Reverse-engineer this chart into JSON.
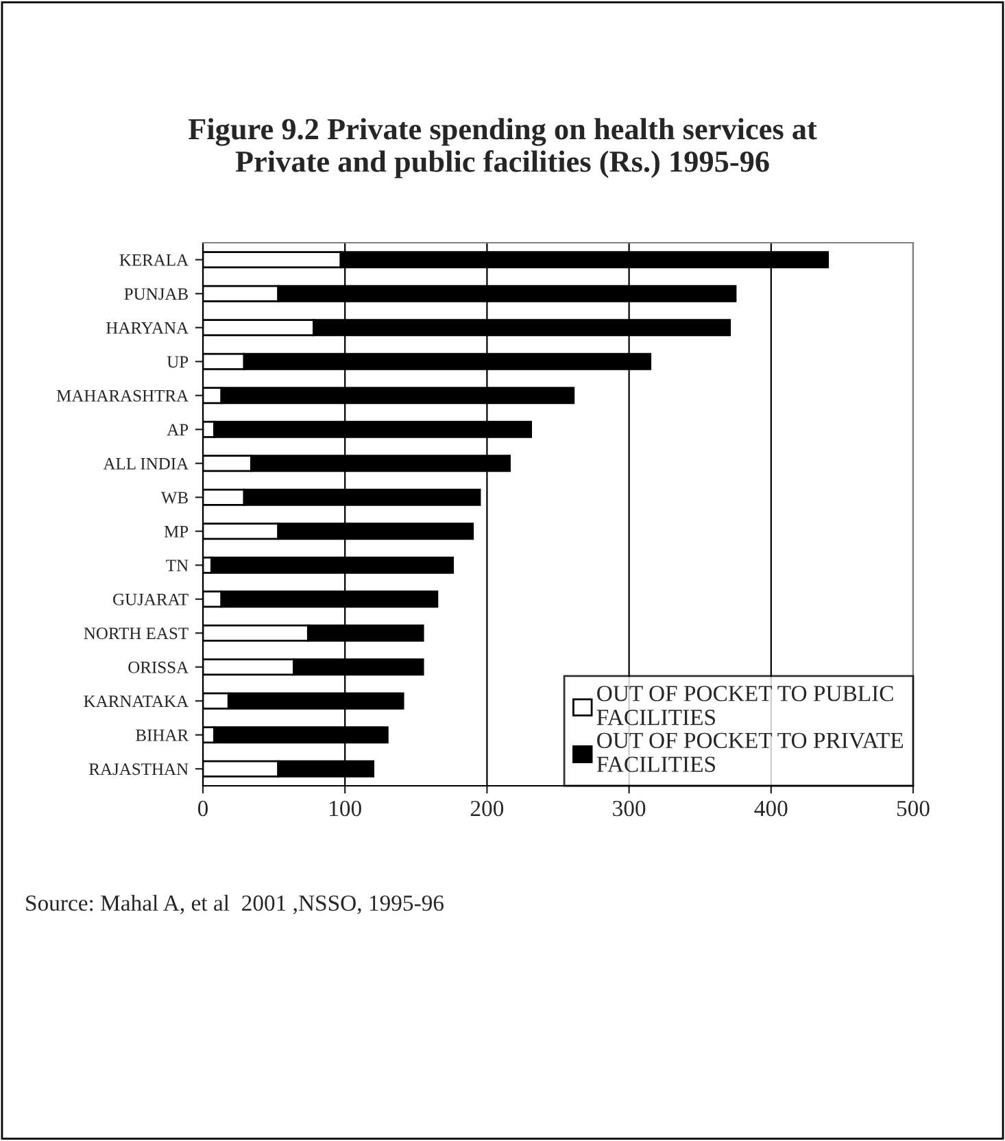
{
  "chart_data": {
    "type": "bar",
    "orientation": "horizontal",
    "stacked": true,
    "title": "Figure 9.2 Private spending on health services at\nPrivate and public facilities (Rs.) 1995-96",
    "categories": [
      "KERALA",
      "PUNJAB",
      "HARYANA",
      "UP",
      "MAHARASHTRA",
      "AP",
      "ALL INDIA",
      "WB",
      "MP",
      "TN",
      "GUJARAT",
      "NORTH EAST",
      "ORISSA",
      "KARNATAKA",
      "BIHAR",
      "RAJASTHAN"
    ],
    "series": [
      {
        "name": "OUT OF POCKET TO PUBLIC\nFACILITIES",
        "color": "#ffffff",
        "values": [
          97,
          53,
          78,
          29,
          13,
          8,
          34,
          29,
          53,
          6,
          13,
          74,
          64,
          18,
          8,
          53
        ]
      },
      {
        "name": "OUT OF POCKET TO PRIVATE\nFACILITIES",
        "color": "#000000",
        "values": [
          343,
          322,
          293,
          286,
          248,
          223,
          182,
          166,
          137,
          170,
          152,
          81,
          91,
          123,
          122,
          67
        ]
      }
    ],
    "xlim": [
      0,
      500
    ],
    "xticks": [
      0,
      100,
      200,
      300,
      400,
      500
    ],
    "grid": "x",
    "legend": "bottom right",
    "annotations": [
      "Source: Mahal A, et al  2001 ,NSSO, 1995-96"
    ]
  }
}
